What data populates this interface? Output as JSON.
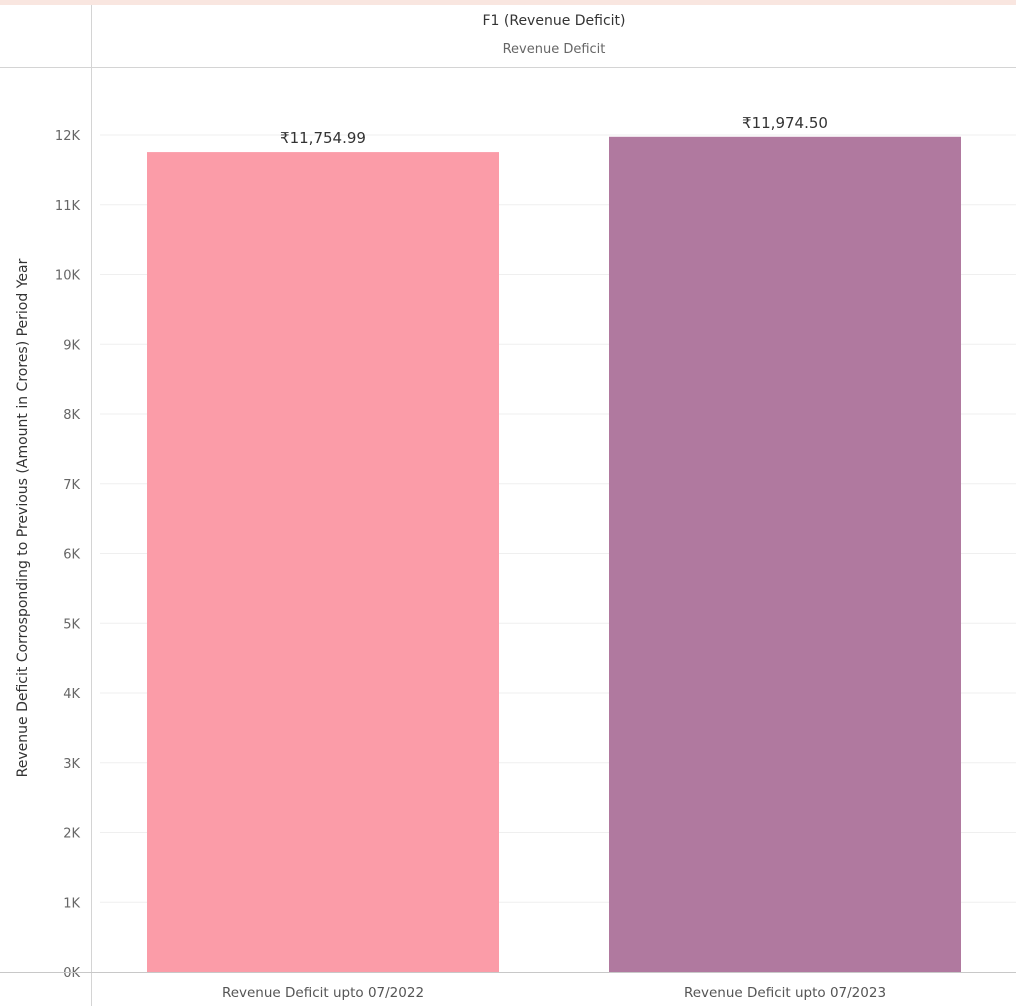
{
  "header": {
    "title": "F1 (Revenue Deficit)",
    "subtitle": "Revenue Deficit"
  },
  "chart_data": {
    "type": "bar",
    "title": "F1 (Revenue Deficit)",
    "subtitle": "Revenue Deficit",
    "xlabel": "",
    "ylabel": "Revenue Deficit Corrosponding to Previous (Amount in Crores) Period Year",
    "categories": [
      "Revenue Deficit  upto 07/2022",
      "Revenue Deficit upto 07/2023"
    ],
    "values": [
      11754.99,
      11974.5
    ],
    "data_labels": [
      "₹11,754.99",
      "₹11,974.50"
    ],
    "colors": [
      "#fb9ca8",
      "#b0799f"
    ],
    "ylim": [
      0,
      12000
    ],
    "yticks": [
      0,
      1000,
      2000,
      3000,
      4000,
      5000,
      6000,
      7000,
      8000,
      9000,
      10000,
      11000,
      12000
    ],
    "ytick_labels": [
      "0K",
      "1K",
      "2K",
      "3K",
      "4K",
      "5K",
      "6K",
      "7K",
      "8K",
      "9K",
      "10K",
      "11K",
      "12K"
    ],
    "grid": true,
    "legend": "none"
  }
}
